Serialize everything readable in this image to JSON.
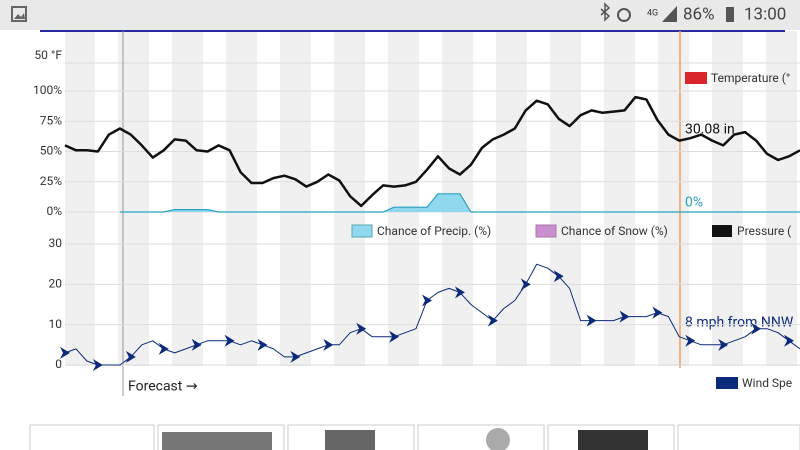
{
  "status_bar": {
    "network": "4G",
    "battery": "86%",
    "time": "13:00"
  },
  "chart_data": [
    {
      "type": "line",
      "yticks": [
        {
          "value": 50,
          "label": "50 °F"
        }
      ],
      "series": [
        {
          "name": "Temperature (°",
          "color": "#d9262b"
        }
      ]
    },
    {
      "type": "line",
      "ylim": [
        0,
        100
      ],
      "yticks": [
        {
          "value": 0,
          "label": "0%"
        },
        {
          "value": 25,
          "label": "25%"
        },
        {
          "value": 50,
          "label": "50%"
        },
        {
          "value": 75,
          "label": "75%"
        },
        {
          "value": 100,
          "label": "100%"
        }
      ],
      "annotations": [
        "30.08 in",
        "0%"
      ],
      "series": [
        {
          "name": "Chance of Precip. (%)",
          "color": "#8fd8ef",
          "values": [
            null,
            null,
            null,
            null,
            null,
            0,
            0,
            0,
            0,
            0,
            2,
            2,
            2,
            2,
            0,
            0,
            0,
            0,
            0,
            0,
            0,
            0,
            0,
            0,
            0,
            0,
            0,
            0,
            0,
            0,
            4,
            4,
            4,
            4,
            15,
            15,
            15,
            0,
            0,
            0,
            0,
            0,
            0,
            0,
            0,
            0,
            0,
            0,
            0,
            0,
            0,
            0,
            0,
            0,
            0,
            0,
            0,
            0,
            0,
            0,
            0,
            0,
            0,
            0,
            0,
            0,
            0,
            0
          ]
        },
        {
          "name": "Chance of Snow (%)",
          "color": "#c98fcf"
        },
        {
          "name": "Pressure (",
          "color": "#111111",
          "values": [
            55,
            51,
            51,
            50,
            64,
            69,
            64,
            55,
            45,
            51,
            60,
            59,
            51,
            50,
            55,
            51,
            33,
            24,
            24,
            28,
            30,
            27,
            21,
            25,
            31,
            26,
            13,
            5,
            14,
            22,
            21,
            22,
            25,
            35,
            46,
            36,
            31,
            39,
            53,
            60,
            64,
            69,
            84,
            92,
            89,
            77,
            71,
            80,
            84,
            82,
            83,
            84,
            95,
            93,
            76,
            64,
            59,
            61,
            64,
            59,
            55,
            64,
            66,
            59,
            48,
            43,
            46,
            51
          ]
        }
      ]
    },
    {
      "type": "line",
      "ylim": [
        0,
        30
      ],
      "yticks": [
        0,
        10,
        20,
        30
      ],
      "annotations": [
        "8 mph from NNW",
        "Forecast →"
      ],
      "series": [
        {
          "name": "Wind Spe",
          "color": "#0b2a7a",
          "values": [
            3,
            4,
            1,
            0,
            0,
            0,
            2,
            5,
            6,
            4,
            3,
            4,
            5,
            6,
            6,
            6,
            5,
            6,
            5,
            4,
            2,
            2,
            3,
            4,
            5,
            5,
            8,
            9,
            7,
            7,
            7,
            8,
            9,
            16,
            18,
            19,
            18,
            15,
            13,
            11,
            14,
            16,
            20,
            25,
            24,
            22,
            19,
            11,
            11,
            11,
            11,
            12,
            12,
            12,
            13,
            12,
            7,
            6,
            5,
            5,
            5,
            6,
            7,
            9,
            9,
            8,
            6,
            4
          ]
        }
      ]
    }
  ]
}
